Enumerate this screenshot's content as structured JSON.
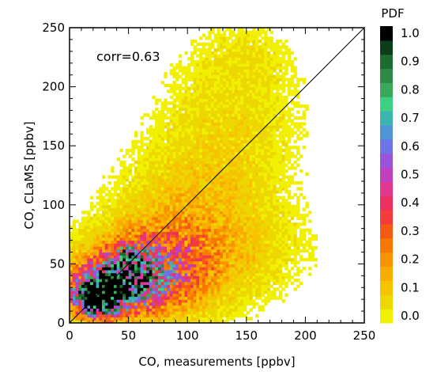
{
  "chart_data": {
    "type": "heatmap",
    "xlabel": "CO, measurements [ppbv]",
    "ylabel": "CO, CLaMS [ppbv]",
    "xlim": [
      0,
      250
    ],
    "ylim": [
      0,
      250
    ],
    "x_ticks": [
      0,
      50,
      100,
      150,
      200,
      250
    ],
    "y_ticks": [
      0,
      50,
      100,
      150,
      200,
      250
    ],
    "x_tick_labels": [
      "0",
      "50",
      "100",
      "150",
      "200",
      "250"
    ],
    "y_tick_labels": [
      "0",
      "50",
      "100",
      "150",
      "200",
      "250"
    ],
    "annotation": "corr=0.63",
    "correlation": 0.63,
    "reference_line": {
      "x": [
        0,
        250
      ],
      "y": [
        0,
        250
      ]
    },
    "colorbar": {
      "title": "PDF",
      "range": [
        0.0,
        1.0
      ],
      "ticks": [
        0.0,
        0.1,
        0.2,
        0.3,
        0.4,
        0.5,
        0.6,
        0.7,
        0.8,
        0.9,
        1.0
      ],
      "tick_labels": [
        "0.0",
        "0.1",
        "0.2",
        "0.3",
        "0.4",
        "0.5",
        "0.6",
        "0.7",
        "0.8",
        "0.9",
        "1.0"
      ],
      "colors": [
        "#f0f000",
        "#ecd800",
        "#f7c300",
        "#f8ad00",
        "#f89400",
        "#f77800",
        "#f55a14",
        "#f43c3c",
        "#ee3060",
        "#e03890",
        "#c040c0",
        "#9a54dc",
        "#6c74e8",
        "#4c96d8",
        "#3cb4b0",
        "#3cd080",
        "#3aa85a",
        "#2c8a44",
        "#1c6c30",
        "#0c3c18",
        "#000000"
      ]
    },
    "density_blobs": [
      {
        "x": 25,
        "y": 24,
        "sx": 12,
        "sy": 10,
        "w": 1.0
      },
      {
        "x": 35,
        "y": 30,
        "sx": 22,
        "sy": 15,
        "w": 0.55
      },
      {
        "x": 55,
        "y": 42,
        "sx": 28,
        "sy": 20,
        "w": 0.35
      },
      {
        "x": 52,
        "y": 58,
        "sx": 9,
        "sy": 8,
        "w": 0.3
      },
      {
        "x": 80,
        "y": 45,
        "sx": 35,
        "sy": 26,
        "w": 0.2
      },
      {
        "x": 95,
        "y": 80,
        "sx": 38,
        "sy": 38,
        "w": 0.1
      },
      {
        "x": 125,
        "y": 125,
        "sx": 40,
        "sy": 55,
        "w": 0.055
      },
      {
        "x": 145,
        "y": 185,
        "sx": 35,
        "sy": 45,
        "w": 0.035
      },
      {
        "x": 150,
        "y": 60,
        "sx": 40,
        "sy": 25,
        "w": 0.04
      },
      {
        "x": 150,
        "y": 225,
        "sx": 25,
        "sy": 18,
        "w": 0.025
      },
      {
        "x": 18,
        "y": 15,
        "sx": 8,
        "sy": 6,
        "w": 0.4
      }
    ]
  }
}
